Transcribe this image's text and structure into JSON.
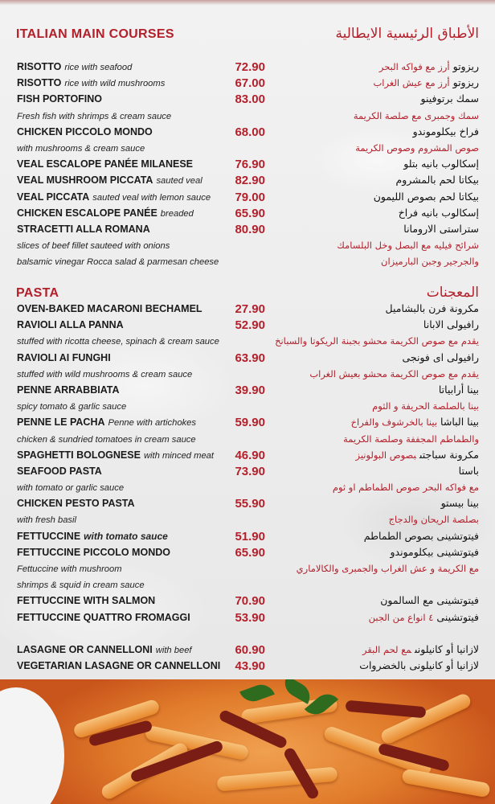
{
  "colors": {
    "accent": "#b3202b",
    "text": "#1a1a1a",
    "background": "#ebebeb"
  },
  "sections": [
    {
      "title_en": "ITALIAN MAIN COURSES",
      "title_ar": "الأطباق الرئيسية الايطالية",
      "groups": [
        [
          {
            "name": "RISOTTO",
            "desc": "rice with seafood",
            "price": "72.90",
            "ar_name": "ريزوتو",
            "ar_desc": "أرز مع فواكه البحر"
          },
          {
            "name": "RISOTTO",
            "desc": "rice with wild mushrooms",
            "price": "67.00",
            "ar_name": "ريزوتو",
            "ar_desc": "أرز مع عيش الغراب"
          },
          {
            "name": "FISH PORTOFINO",
            "desc": "",
            "price": "83.00",
            "ar_name": "سمك برتوفينو",
            "ar_desc": ""
          },
          {
            "name": "",
            "desc": "Fresh fish with shrimps & cream sauce",
            "price": "",
            "ar_name": "",
            "ar_desc": "سمك وجمبرى مع صلصة الكريمة"
          },
          {
            "name": "CHICKEN PICCOLO MONDO",
            "desc": "",
            "price": "68.00",
            "ar_name": "فراخ بيكلوموندو",
            "ar_desc": ""
          },
          {
            "name": "",
            "desc": "with mushrooms & cream sauce",
            "price": "",
            "ar_name": "",
            "ar_desc": "صوص المشروم وصوص الكريمة"
          },
          {
            "name": "VEAL ESCALOPE PANÉE MILANESE",
            "desc": "",
            "price": "76.90",
            "ar_name": "إسكالوب بانيه بتلو",
            "ar_desc": ""
          },
          {
            "name": "VEAL MUSHROOM PICCATA",
            "desc": "sauted veal",
            "price": "82.90",
            "ar_name": "بيكاتا لحم بالمشروم",
            "ar_desc": ""
          },
          {
            "name": "VEAL PICCATA",
            "desc": "sauted veal with lemon sauce",
            "price": "79.00",
            "ar_name": "بيكاتا لحم بصوص الليمون",
            "ar_desc": ""
          },
          {
            "name": "CHICKEN ESCALOPE PANÉE",
            "desc": "breaded",
            "price": "65.90",
            "ar_name": "إسكالوب بانيه فراخ",
            "ar_desc": ""
          },
          {
            "name": "STRACETTI ALLA ROMANA",
            "desc": "",
            "price": "80.90",
            "ar_name": "ستراستى الارومانا",
            "ar_desc": ""
          },
          {
            "name": "",
            "desc": "slices of beef fillet sauteed with onions",
            "price": "",
            "ar_name": "",
            "ar_desc": "شرائح فيليه مع البصل وخل البلسامك"
          },
          {
            "name": "",
            "desc": "balsamic vinegar Rocca salad & parmesan cheese",
            "price": "",
            "ar_name": "",
            "ar_desc": "والجرجير وجبن البارميزان"
          }
        ]
      ]
    },
    {
      "title_en": "PASTA",
      "title_ar": "المعجنات",
      "groups": [
        [
          {
            "name": "OVEN-BAKED MACARONI BECHAMEL",
            "desc": "",
            "price": "27.90",
            "ar_name": "مكرونة فرن بالبشاميل",
            "ar_desc": ""
          },
          {
            "name": "RAVIOLI ALLA PANNA",
            "desc": "",
            "price": "52.90",
            "ar_name": "رافيولى الابانا",
            "ar_desc": ""
          },
          {
            "name": "",
            "desc": "stuffed with ricotta cheese, spinach & cream sauce",
            "price": "",
            "ar_name": "",
            "ar_desc": "يقدم مع صوص الكريمة محشو بجبنة الريكوتا والسبانخ"
          },
          {
            "name": "RAVIOLI AI FUNGHI",
            "desc": "",
            "price": "63.90",
            "ar_name": "رافيولى اى فونجى",
            "ar_desc": ""
          },
          {
            "name": "",
            "desc": "stuffed with wild mushrooms & cream sauce",
            "price": "",
            "ar_name": "",
            "ar_desc": "يقدم مع صوص الكريمة محشو بعيش الغراب"
          },
          {
            "name": "PENNE ARRABBIATA",
            "desc": "",
            "price": "39.90",
            "ar_name": "بينا أرابياتا",
            "ar_desc": ""
          },
          {
            "name": "",
            "desc": "spicy tomato & garlic sauce",
            "price": "",
            "ar_name": "",
            "ar_desc": "بينا بالصلصة الحريفة و الثوم"
          },
          {
            "name": "PENNE LE PACHA",
            "desc": "Penne with artichokes",
            "price": "59.90",
            "ar_name": "بينا الباشا",
            "ar_desc": "بينا بالخرشوف والفراخ"
          },
          {
            "name": "",
            "desc": "chicken & sundried tomatoes in cream sauce",
            "price": "",
            "ar_name": "",
            "ar_desc": "والطماطم المجففة وصلصة الكريمة"
          },
          {
            "name": "SPAGHETTI BOLOGNESE",
            "desc": "with minced meat",
            "price": "46.90",
            "ar_name": "مكرونة سباجتى",
            "ar_desc": "بصوص البولونيز"
          },
          {
            "name": "SEAFOOD PASTA",
            "desc": "",
            "price": "73.90",
            "ar_name": "باستا",
            "ar_desc": ""
          },
          {
            "name": "",
            "desc": "with tomato or garlic sauce",
            "price": "",
            "ar_name": "",
            "ar_desc": "مع فواكه البحر صوص الطماطم او ثوم"
          },
          {
            "name": "CHICKEN PESTO PASTA",
            "desc": "",
            "price": "55.90",
            "ar_name": "بينا بيستو",
            "ar_desc": ""
          },
          {
            "name": "",
            "desc": "with fresh basil",
            "price": "",
            "ar_name": "",
            "ar_desc": "بصلصة الريحان والدجاج"
          },
          {
            "name": "FETTUCCINE",
            "desc": "with tomato sauce",
            "price": "51.90",
            "ar_name": "فيتوتشينى بصوص الطماطم",
            "ar_desc": ""
          },
          {
            "name": "FETTUCCINE PICCOLO MONDO",
            "desc": "",
            "price": "65.90",
            "ar_name": "فيتوتشينى بيكلوموندو",
            "ar_desc": ""
          },
          {
            "name": "",
            "desc": "Fettuccine with mushroom",
            "price": "",
            "ar_name": "",
            "ar_desc": "مع الكريمة و عش الغراب والجمبرى والكالاماري"
          },
          {
            "name": "",
            "desc": " shrimps & squid in cream sauce",
            "price": "",
            "ar_name": "",
            "ar_desc": ""
          },
          {
            "name": "FETTUCCINE WITH SALMON",
            "desc": "",
            "price": "70.90",
            "ar_name": "فيتوتشينى مع السالمون",
            "ar_desc": ""
          },
          {
            "name": "FETTUCCINE QUATTRO FROMAGGI",
            "desc": "",
            "price": "53.90",
            "ar_name": "فيتوتشينى",
            "ar_desc": "٤ انواع من الجبن"
          }
        ],
        [
          {
            "name": "LASAGNE OR CANNELLONI",
            "desc": "with beef",
            "price": "60.90",
            "ar_name": "لازانيا أو كانيلونى",
            "ar_desc": "مع لحم البقر"
          },
          {
            "name": "VEGETARIAN LASAGNE OR CANNELLONI",
            "desc": "",
            "price": "43.90",
            "ar_name": "لازانيا أو كانيلونى بالخضروات",
            "ar_desc": ""
          }
        ]
      ]
    }
  ],
  "photo": {
    "subject-icon": "penne-pasta-dish-photo"
  }
}
